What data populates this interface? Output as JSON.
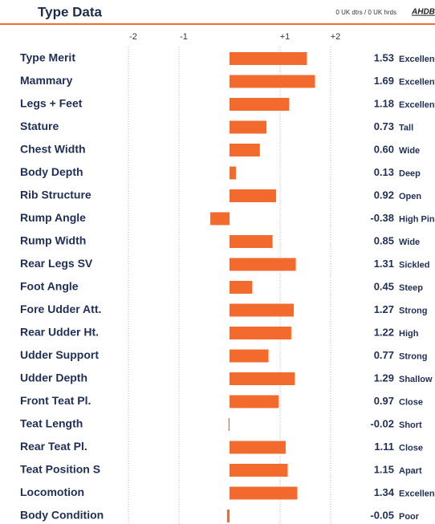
{
  "chart_data": {
    "type": "bar",
    "orientation": "horizontal",
    "title": "Type Data",
    "subtitle": "0 UK dtrs / 0 UK hrds",
    "logo": "AHDB",
    "color": "#f26a2e",
    "accent_color": "#f26a2e",
    "grid": true,
    "xlim": [
      -2,
      2
    ],
    "xticks": [
      -2,
      -1,
      {
        "value": 1,
        "label": "+1"
      },
      {
        "value": 2,
        "label": "+2"
      }
    ],
    "categories": [
      "Type Merit",
      "Mammary",
      "Legs + Feet",
      "Stature",
      "Chest Width",
      "Body Depth",
      "Rib Structure",
      "Rump Angle",
      "Rump Width",
      "Rear Legs SV",
      "Foot Angle",
      "Fore Udder Att.",
      "Rear Udder Ht.",
      "Udder Support",
      "Udder Depth",
      "Front Teat Pl.",
      "Teat Length",
      "Rear Teat Pl.",
      "Teat Position S",
      "Locomotion",
      "Body Condition"
    ],
    "values": [
      1.53,
      1.69,
      1.18,
      0.73,
      0.6,
      0.13,
      0.92,
      -0.38,
      0.85,
      1.31,
      0.45,
      1.27,
      1.22,
      0.77,
      1.29,
      0.97,
      -0.02,
      1.11,
      1.15,
      1.34,
      -0.05
    ],
    "value_labels": [
      "1.53",
      "1.69",
      "1.18",
      "0.73",
      "0.60",
      "0.13",
      "0.92",
      "-0.38",
      "0.85",
      "1.31",
      "0.45",
      "1.27",
      "1.22",
      "0.77",
      "1.29",
      "0.97",
      "-0.02",
      "1.11",
      "1.15",
      "1.34",
      "-0.05"
    ],
    "descriptors": [
      "Excellent",
      "Excellent",
      "Excellent",
      "Tall",
      "Wide",
      "Deep",
      "Open",
      "High Pins",
      "Wide",
      "Sickled",
      "Steep",
      "Strong",
      "High",
      "Strong",
      "Shallow",
      "Close",
      "Short",
      "Close",
      "Apart",
      "Excellent",
      "Poor"
    ]
  }
}
